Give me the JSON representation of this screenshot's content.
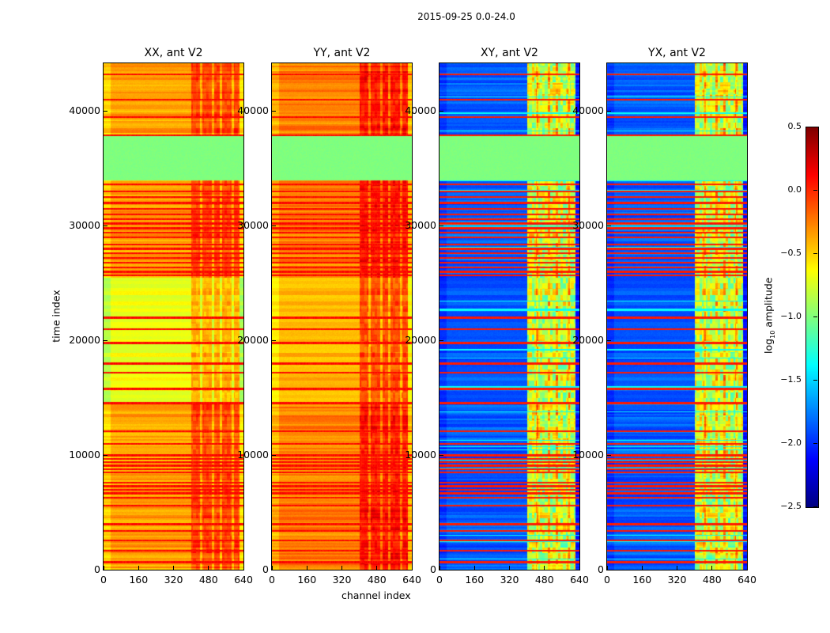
{
  "suptitle": "2015-09-25 0.0-24.0",
  "xlabel": "channel index",
  "ylabel": "time index",
  "chart_data": {
    "type": "heatmap",
    "xlim": [
      0,
      640
    ],
    "ylim": [
      0,
      44140
    ],
    "x_ticks": [
      "0",
      "160",
      "320",
      "480",
      "640"
    ],
    "x_tick_values": [
      0,
      160,
      320,
      480,
      640
    ],
    "y_ticks": [
      "0",
      "10000",
      "20000",
      "30000",
      "40000"
    ],
    "y_tick_values": [
      0,
      10000,
      20000,
      30000,
      40000
    ],
    "colorbar": {
      "label_prefix": "log",
      "label_sub": "10",
      "label_suffix": " amplitude",
      "range": [
        -2.5,
        0.5
      ],
      "ticks": [
        "0.5",
        "0.0",
        "−0.5",
        "−1.0",
        "−1.5",
        "−2.0",
        "−2.5"
      ],
      "tick_values": [
        0.5,
        0.0,
        -0.5,
        -1.0,
        -1.5,
        -2.0,
        -2.5
      ],
      "colormap": "jet"
    },
    "flagged_band": {
      "time_range": [
        34000,
        37800
      ],
      "value": -1.0
    },
    "rfi_time_lines": [
      700,
      1700,
      2600,
      3400,
      4000,
      5600,
      6300,
      6700,
      7000,
      7300,
      7600,
      8500,
      8800,
      9100,
      9400,
      9700,
      10000,
      11000,
      12100,
      14500,
      14600,
      15800,
      17200,
      18000,
      19800,
      21000,
      22000,
      25700,
      26000,
      26400,
      26800,
      27200,
      27600,
      28000,
      28400,
      29000,
      29400,
      29800,
      30200,
      30600,
      31000,
      31500,
      32000,
      32500,
      33000,
      33600,
      37900,
      39500,
      41000,
      43200
    ],
    "panels": [
      {
        "title": "XX, ant V2",
        "base": -0.35,
        "quiet_range": [
          14500,
          25500
        ],
        "quiet_value": -0.65,
        "rfi_channel_range": [
          400,
          620
        ],
        "rfi_boost": 0.3
      },
      {
        "title": "YY, ant V2",
        "base": -0.25,
        "quiet_range": [
          14500,
          25500
        ],
        "quiet_value": -0.4,
        "rfi_channel_range": [
          400,
          620
        ],
        "rfi_boost": 0.35
      },
      {
        "title": "XY, ant V2",
        "base": -1.85,
        "quiet_range": [
          14500,
          25500
        ],
        "quiet_value": -1.85,
        "rfi_channel_range": [
          400,
          620
        ],
        "rfi_boost": 1.2
      },
      {
        "title": "YX, ant V2",
        "base": -1.85,
        "quiet_range": [
          14500,
          25500
        ],
        "quiet_value": -1.85,
        "rfi_channel_range": [
          400,
          620
        ],
        "rfi_boost": 1.2
      }
    ]
  }
}
